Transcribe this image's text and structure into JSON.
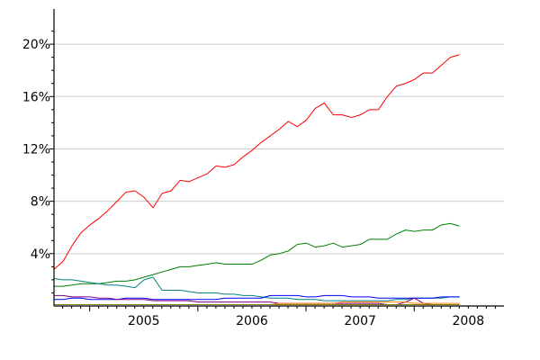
{
  "chart_data": {
    "type": "line",
    "title": "",
    "xlabel": "",
    "ylabel": "",
    "xlim": [
      2004.67,
      2008.83
    ],
    "ylim": [
      0,
      22
    ],
    "grid": true,
    "y_ticks": [
      4,
      8,
      12,
      16,
      20
    ],
    "y_tick_labels": [
      "4%",
      "8%",
      "12%",
      "16%",
      "20%"
    ],
    "x_ticks": [
      2005,
      2006,
      2007,
      2008
    ],
    "x_tick_labels": [
      "2005",
      "2006",
      "2007",
      "2008"
    ],
    "x_start": 2004.67,
    "x_step": 0.0833,
    "series": [
      {
        "color": "#ff0000",
        "values": [
          2.8,
          3.4,
          4.6,
          5.6,
          6.2,
          6.7,
          7.3,
          8.0,
          8.7,
          8.8,
          8.3,
          7.5,
          8.6,
          8.8,
          9.6,
          9.5,
          9.8,
          10.1,
          10.7,
          10.6,
          10.8,
          11.4,
          11.9,
          12.5,
          13.0,
          13.5,
          14.1,
          13.7,
          14.2,
          15.1,
          15.5,
          14.6,
          14.6,
          14.4,
          14.6,
          15.0,
          15.0,
          16.0,
          16.8,
          17.0,
          17.3,
          17.8,
          17.8,
          18.4,
          19.0,
          19.2
        ]
      },
      {
        "color": "#008000",
        "values": [
          1.5,
          1.5,
          1.6,
          1.7,
          1.7,
          1.7,
          1.8,
          1.9,
          1.9,
          2.0,
          2.2,
          2.4,
          2.6,
          2.8,
          3.0,
          3.0,
          3.1,
          3.2,
          3.3,
          3.2,
          3.2,
          3.2,
          3.2,
          3.5,
          3.9,
          4.0,
          4.2,
          4.7,
          4.8,
          4.5,
          4.6,
          4.8,
          4.5,
          4.6,
          4.7,
          5.1,
          5.1,
          5.1,
          5.5,
          5.8,
          5.7,
          5.8,
          5.8,
          6.2,
          6.3,
          6.1
        ]
      },
      {
        "color": "#008080",
        "values": [
          2.1,
          2.0,
          2.0,
          1.9,
          1.8,
          1.7,
          1.6,
          1.6,
          1.5,
          1.4,
          2.0,
          2.2,
          1.2,
          1.2,
          1.2,
          1.1,
          1.0,
          1.0,
          1.0,
          0.9,
          0.9,
          0.8,
          0.8,
          0.7,
          0.6,
          0.6,
          0.6,
          0.5,
          0.5,
          0.5,
          0.4,
          0.4,
          0.4,
          0.4,
          0.4,
          0.4,
          0.4,
          0.4,
          0.5,
          0.5,
          0.6,
          0.6,
          0.6,
          0.6,
          0.7,
          0.7
        ]
      },
      {
        "color": "#0000ff",
        "values": [
          0.5,
          0.5,
          0.6,
          0.6,
          0.5,
          0.5,
          0.5,
          0.5,
          0.6,
          0.6,
          0.6,
          0.5,
          0.5,
          0.5,
          0.5,
          0.5,
          0.5,
          0.5,
          0.5,
          0.6,
          0.6,
          0.6,
          0.6,
          0.6,
          0.8,
          0.8,
          0.8,
          0.8,
          0.7,
          0.7,
          0.8,
          0.8,
          0.8,
          0.7,
          0.7,
          0.7,
          0.6,
          0.6,
          0.6,
          0.6,
          0.6,
          0.6,
          0.6,
          0.7,
          0.7,
          0.7
        ]
      },
      {
        "color": "#800080",
        "values": [
          0.8,
          0.8,
          0.7,
          0.7,
          0.7,
          0.6,
          0.6,
          0.5,
          0.5,
          0.5,
          0.5,
          0.4,
          0.4,
          0.4,
          0.4,
          0.4,
          0.3,
          0.3,
          0.3,
          0.3,
          0.3,
          0.3,
          0.3,
          0.3,
          0.3,
          0.2,
          0.2,
          0.2,
          0.2,
          0.2,
          0.2,
          0.2,
          0.2,
          0.2,
          0.2,
          0.2,
          0.2,
          0.1,
          0.1,
          0.3,
          0.6,
          0.2,
          0.1,
          0.1,
          0.1,
          0.1
        ]
      },
      {
        "color": "#ff8000",
        "values": [
          0.1,
          0.1,
          0.1,
          0.1,
          0.1,
          0.1,
          0.1,
          0.1,
          0.1,
          0.1,
          0.1,
          0.1,
          0.1,
          0.1,
          0.1,
          0.1,
          0.1,
          0.1,
          0.1,
          0.1,
          0.1,
          0.1,
          0.1,
          0.1,
          0.1,
          0.2,
          0.2,
          0.2,
          0.2,
          0.2,
          0.2,
          0.2,
          0.3,
          0.3,
          0.3,
          0.3,
          0.3,
          0.3,
          0.3,
          0.3,
          0.2,
          0.2,
          0.2,
          0.2,
          0.2,
          0.2
        ]
      },
      {
        "color": "#808000",
        "values": [
          0.1,
          0.1,
          0.1,
          0.1,
          0.1,
          0.1,
          0.1,
          0.1,
          0.1,
          0.1,
          0.1,
          0.1,
          0.1,
          0.1,
          0.1,
          0.1,
          0.1,
          0.1,
          0.1,
          0.1,
          0.1,
          0.1,
          0.1,
          0.1,
          0.1,
          0.1,
          0.1,
          0.1,
          0.1,
          0.1,
          0.1,
          0.1,
          0.1,
          0.1,
          0.1,
          0.1,
          0.1,
          0.1,
          0.1,
          0.1,
          0.1,
          0.1,
          0.1,
          0.1,
          0.1,
          0.1
        ]
      }
    ]
  }
}
